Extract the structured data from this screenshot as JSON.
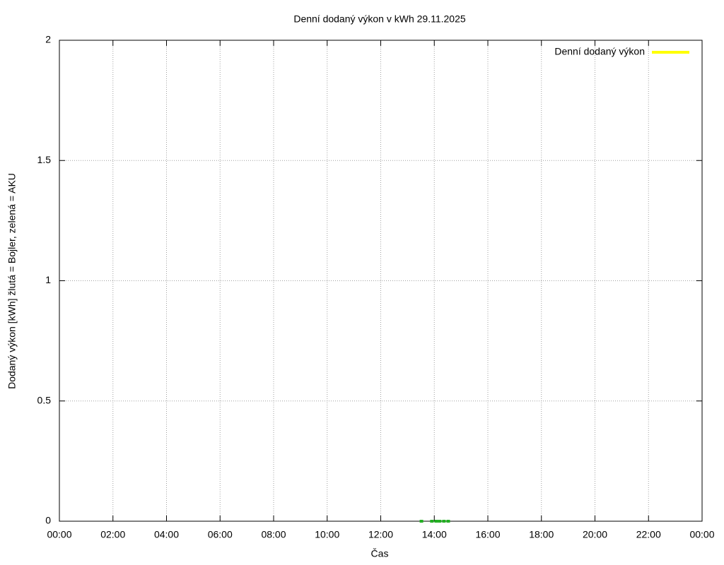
{
  "chart_data": {
    "type": "line",
    "title": "Denní dodaný výkon v kWh 29.11.2025",
    "x_label": "Čas",
    "y_label": "Dodaný výkon [kWh]  žlutá = Bojler, zelená = AKU",
    "x": [
      13.52,
      13.91,
      14.07,
      14.2,
      14.36,
      14.52
    ],
    "series": [
      {
        "name": "Denní dodaný výkon",
        "color": "#ffff00",
        "values": [
          null,
          null,
          null,
          null,
          null,
          null
        ]
      },
      {
        "color": "#22b022",
        "values": [
          0,
          0,
          0,
          0,
          0,
          0
        ]
      }
    ],
    "xlim": [
      0,
      24
    ],
    "xticks": [
      {
        "value": 0,
        "label": "00:00"
      },
      {
        "value": 2,
        "label": "02:00"
      },
      {
        "value": 4,
        "label": "04:00"
      },
      {
        "value": 6,
        "label": "06:00"
      },
      {
        "value": 8,
        "label": "08:00"
      },
      {
        "value": 10,
        "label": "10:00"
      },
      {
        "value": 12,
        "label": "12:00"
      },
      {
        "value": 14,
        "label": "14:00"
      },
      {
        "value": 16,
        "label": "16:00"
      },
      {
        "value": 18,
        "label": "18:00"
      },
      {
        "value": 20,
        "label": "20:00"
      },
      {
        "value": 22,
        "label": "22:00"
      },
      {
        "value": 24,
        "label": "00:00"
      }
    ],
    "ylim": [
      0,
      2
    ],
    "yticks": [
      0,
      0.5,
      1,
      1.5,
      2
    ],
    "grid": true,
    "legend": "top-right"
  }
}
